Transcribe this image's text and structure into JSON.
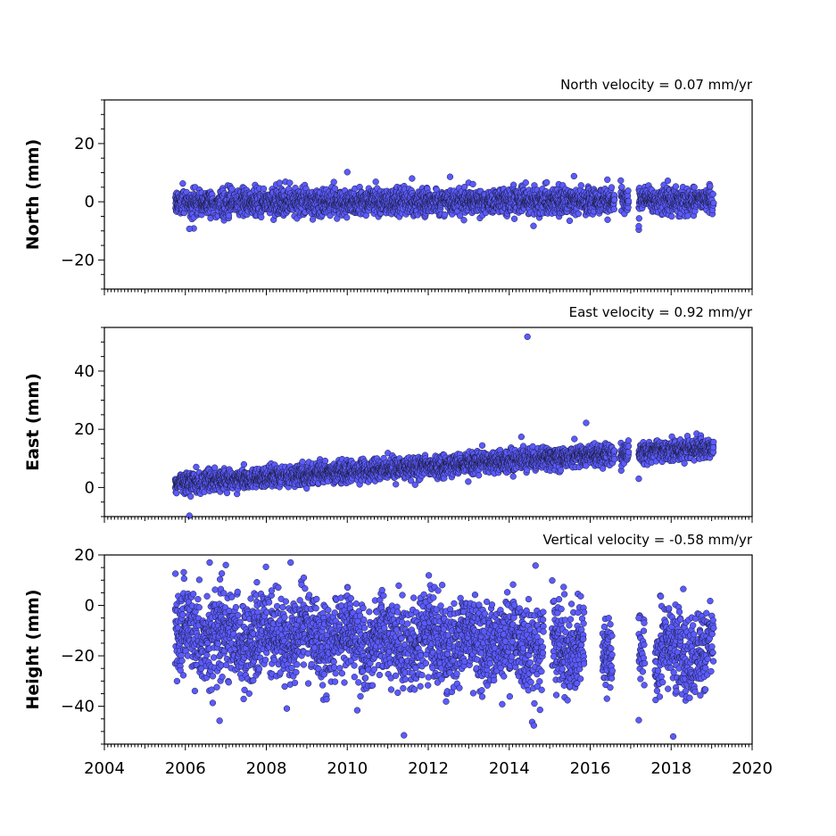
{
  "colors": {
    "marker_fill": "#5b5bff",
    "marker_edge": "#1a1a3a",
    "axes": "#000000"
  },
  "chart_data": [
    {
      "type": "scatter",
      "ylabel": "North (mm)",
      "annotation": "North velocity = 0.07 mm/yr",
      "xlim": [
        2004,
        2020
      ],
      "ylim": [
        -30,
        35
      ],
      "x_ticks": [
        2004,
        2006,
        2008,
        2010,
        2012,
        2014,
        2016,
        2018,
        2020
      ],
      "y_ticks": [
        -20,
        0,
        20
      ],
      "x_tick_labels_shown": false,
      "data_span": [
        2005.75,
        2019.05
      ],
      "gaps": [
        [
          2016.6,
          2016.75
        ],
        [
          2016.95,
          2017.2
        ]
      ],
      "trend": {
        "intercept_at_start": -0.3,
        "slope_per_year": 0.07,
        "scatter": 2.2
      },
      "outliers": [
        [
          2010.0,
          10.2
        ],
        [
          2006.1,
          -9.3
        ],
        [
          2017.2,
          -9.6
        ],
        [
          2017.2,
          -8.4
        ],
        [
          2011.6,
          8.0
        ],
        [
          2015.6,
          8.8
        ],
        [
          2014.6,
          -8.3
        ]
      ]
    },
    {
      "type": "scatter",
      "ylabel": "East (mm)",
      "annotation": "East velocity = 0.92 mm/yr",
      "xlim": [
        2004,
        2020
      ],
      "ylim": [
        -10,
        55
      ],
      "x_ticks": [
        2004,
        2006,
        2008,
        2010,
        2012,
        2014,
        2016,
        2018,
        2020
      ],
      "y_ticks": [
        0,
        20,
        40
      ],
      "x_tick_labels_shown": false,
      "data_span": [
        2005.75,
        2019.05
      ],
      "gaps": [
        [
          2016.6,
          2016.75
        ],
        [
          2016.95,
          2017.2
        ]
      ],
      "trend": {
        "intercept_at_start": 1.5,
        "slope_per_year": 0.92,
        "scatter": 1.8
      },
      "outliers": [
        [
          2014.45,
          51.8
        ],
        [
          2015.9,
          22.2
        ],
        [
          2006.1,
          -9.7
        ],
        [
          2014.3,
          17.4
        ],
        [
          2017.2,
          3.0
        ]
      ]
    },
    {
      "type": "scatter",
      "ylabel": "Height (mm)",
      "annotation": "Vertical velocity = -0.58 mm/yr",
      "xlim": [
        2004,
        2020
      ],
      "ylim": [
        -55,
        20
      ],
      "x_ticks": [
        2004,
        2006,
        2008,
        2010,
        2012,
        2014,
        2016,
        2018,
        2020
      ],
      "x_tick_labels": [
        "2004",
        "2006",
        "2008",
        "2010",
        "2012",
        "2014",
        "2016",
        "2018",
        "2020"
      ],
      "y_ticks": [
        -40,
        -20,
        0,
        20
      ],
      "x_tick_labels_shown": true,
      "data_span": [
        2005.75,
        2019.05
      ],
      "gaps": [
        [
          2014.85,
          2015.05
        ],
        [
          2015.85,
          2016.3
        ],
        [
          2016.55,
          2017.2
        ],
        [
          2017.35,
          2017.6
        ]
      ],
      "trend": {
        "intercept_at_start": -11,
        "slope_per_year": -0.58,
        "scatter": 8.5
      },
      "outliers": [
        [
          2011.4,
          -51.5
        ],
        [
          2018.05,
          -52.0
        ],
        [
          2014.65,
          15.8
        ],
        [
          2006.6,
          17.0
        ],
        [
          2008.6,
          17.0
        ],
        [
          2007.0,
          16.0
        ],
        [
          2017.2,
          -45.5
        ],
        [
          2017.2,
          -5.0
        ],
        [
          2018.3,
          6.5
        ]
      ]
    }
  ]
}
